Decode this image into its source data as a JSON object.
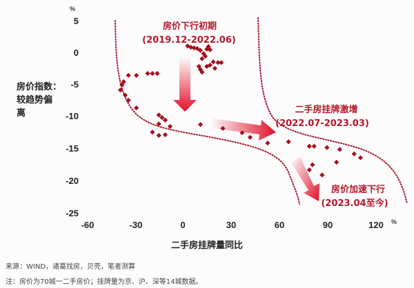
{
  "chart_data": {
    "type": "scatter",
    "title": "",
    "xlabel": "二手房挂牌量同比",
    "ylabel": "房价指数：较趋势偏离",
    "x_unit": "%",
    "y_unit": "%",
    "xlim": [
      -60,
      120
    ],
    "ylim": [
      -25,
      5
    ],
    "x_ticks": [
      -60,
      -30,
      0,
      30,
      60,
      90,
      120
    ],
    "y_ticks": [
      5,
      0,
      -5,
      -10,
      -15,
      -20,
      -25
    ],
    "grid": false,
    "legend": null,
    "series": [
      {
        "name": "房价下行初期 (2019.12-2022.06)",
        "color": "#a50f1e",
        "points": [
          [
            3,
            1
          ],
          [
            5,
            0.8
          ],
          [
            7,
            0.7
          ],
          [
            9,
            0.6
          ],
          [
            11,
            0.3
          ],
          [
            13,
            -0.2
          ],
          [
            15,
            0.5
          ],
          [
            16,
            0.9
          ],
          [
            17,
            0.4
          ],
          [
            14,
            -0.6
          ],
          [
            12,
            -1.0
          ],
          [
            10,
            -2.2
          ],
          [
            11,
            -2.7
          ],
          [
            12,
            -3.1
          ],
          [
            15,
            -2.2
          ],
          [
            17,
            -2.0
          ],
          [
            19,
            -1.5
          ],
          [
            22,
            -1.6
          ],
          [
            24,
            -1.6
          ],
          [
            20,
            -2.5
          ],
          [
            -34,
            -3.6
          ],
          [
            -29,
            -3.6
          ],
          [
            -22,
            -3.3
          ],
          [
            -19,
            -3.3
          ],
          [
            -16,
            -3.3
          ],
          [
            -38,
            -5.1
          ],
          [
            -37,
            -4.6
          ],
          [
            -39,
            -5.9
          ],
          [
            -36,
            -6.7
          ],
          [
            -34,
            -7.5
          ],
          [
            -29,
            -8.7
          ],
          [
            -15,
            -9.8
          ],
          [
            -13,
            -10.2
          ],
          [
            -11,
            -10.6
          ],
          [
            -15,
            -11.2
          ],
          [
            -19,
            -12.5
          ],
          [
            -15,
            -13.0
          ],
          [
            -8,
            -11.6
          ],
          [
            -11,
            -12.9
          ]
        ]
      },
      {
        "name": "二手房挂牌激增 (2022.07-2023.03)",
        "color": "#a50f1e",
        "points": [
          [
            11,
            -11.3
          ],
          [
            25,
            -11.9
          ],
          [
            37,
            -12.6
          ],
          [
            42,
            -13.3
          ],
          [
            53,
            -14.2
          ],
          [
            66,
            -14.0
          ]
        ]
      },
      {
        "name": "房价加速下行 (2023.04至今)",
        "color": "#a50f1e",
        "points": [
          [
            79,
            -14.7
          ],
          [
            82,
            -14.7
          ],
          [
            90,
            -14.9
          ],
          [
            98,
            -15.2
          ],
          [
            107,
            -15.9
          ],
          [
            111,
            -16.5
          ],
          [
            81,
            -17.6
          ],
          [
            79,
            -18.4
          ],
          [
            87,
            -19.2
          ],
          [
            96,
            -17.2
          ]
        ]
      }
    ],
    "annotations": [
      {
        "title": "房价下行初期",
        "period": "(2019.12-2022.06)"
      },
      {
        "title": "二手房挂牌激增",
        "period": "(2022.07-2023.03)"
      },
      {
        "title": "房价加速下行",
        "period": "(2023.04至今)"
      }
    ]
  },
  "axes": {
    "y_unit": "%",
    "x_unit": "%",
    "y_ticks": [
      "5",
      "0",
      "-5",
      "-10",
      "-15",
      "-20",
      "-25"
    ],
    "x_ticks": [
      "-60",
      "-30",
      "0",
      "30",
      "60",
      "90",
      "120"
    ],
    "xlabel": "二手房挂牌量同比",
    "ylabel_lines": [
      "房价指数：",
      "较趋势偏",
      "离"
    ]
  },
  "annotations": {
    "phase1": {
      "title": "房价下行初期",
      "period": "(2019.12-2022.06)"
    },
    "phase2": {
      "title": "二手房挂牌激增",
      "period": "(2022.07-2023.03)"
    },
    "phase3": {
      "title": "房价加速下行",
      "period": "(2023.04至今)"
    }
  },
  "footer": {
    "source": "来源：WIND，诸葛找房，贝壳，笔者测算",
    "note": "注：房价为70城一二手房价；挂牌量为京、沪、深等14城数据。"
  },
  "colors": {
    "marker": "#a50f1e",
    "arrow": "#e0102a",
    "annotation_text": "#b3172b",
    "boundary": "#a3122a"
  }
}
